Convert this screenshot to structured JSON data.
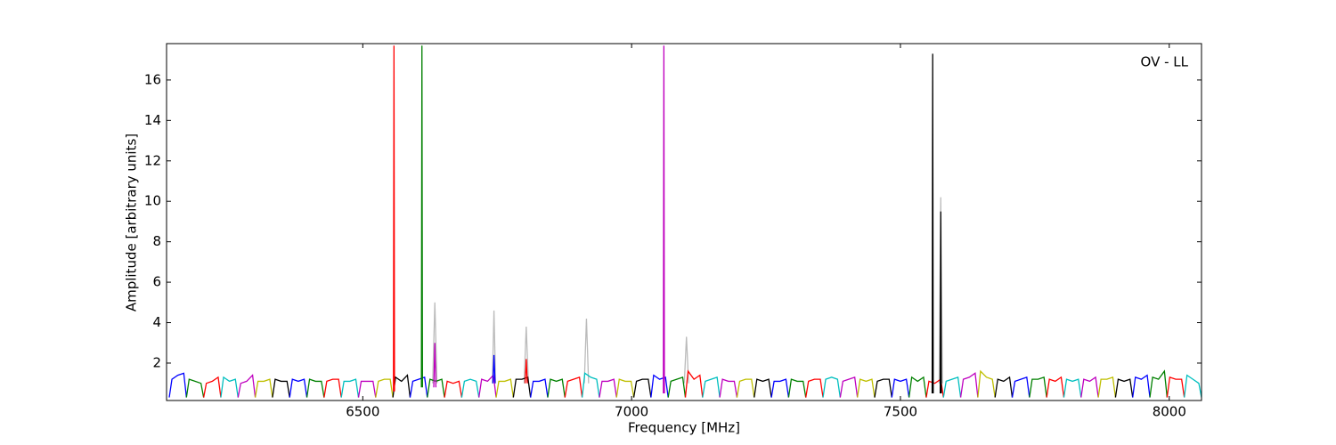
{
  "chart_data": {
    "type": "line",
    "xlabel": "Frequency [MHz]",
    "ylabel": "Amplitude [arbitrary units]",
    "annotation": "OV - LL",
    "xlim": [
      6135,
      8060
    ],
    "ylim": [
      0.15,
      17.8
    ],
    "xticks": [
      6500,
      7000,
      7500,
      8000
    ],
    "yticks": [
      2,
      4,
      6,
      8,
      10,
      12,
      14,
      16
    ],
    "series": [
      {
        "color": "#bbbbbb",
        "x": [
          6630,
          6634,
          6638
        ],
        "values": [
          1.0,
          5.0,
          1.0
        ]
      },
      {
        "color": "#bbbbbb",
        "x": [
          6741,
          6744,
          6747
        ],
        "values": [
          1.0,
          4.6,
          1.0
        ]
      },
      {
        "color": "#bbbbbb",
        "x": [
          6800,
          6804,
          6808
        ],
        "values": [
          1.0,
          3.8,
          1.0
        ]
      },
      {
        "color": "#bbbbbb",
        "x": [
          6912,
          6916,
          6920
        ],
        "values": [
          1.0,
          4.2,
          1.0
        ]
      },
      {
        "color": "#bbbbbb",
        "x": [
          7098,
          7102,
          7106
        ],
        "values": [
          1.0,
          3.3,
          1.0
        ]
      },
      {
        "color": "#bbbbbb",
        "x": [
          7572,
          7575,
          7578
        ],
        "values": [
          1.0,
          10.2,
          1.0
        ]
      },
      {
        "color": "#0000ff",
        "x": [
          6140,
          6145,
          6156,
          6167,
          6172
        ],
        "values": [
          0.3,
          1.2,
          1.4,
          1.5,
          0.3
        ]
      },
      {
        "color": "#008000",
        "x": [
          6172,
          6177,
          6188,
          6199,
          6204
        ],
        "values": [
          0.3,
          1.2,
          1.1,
          1.0,
          0.3
        ]
      },
      {
        "color": "#ff0000",
        "x": [
          6204,
          6209,
          6220,
          6231,
          6236
        ],
        "values": [
          0.3,
          1.0,
          1.1,
          1.3,
          0.3
        ]
      },
      {
        "color": "#00bfbf",
        "x": [
          6236,
          6241,
          6252,
          6263,
          6268
        ],
        "values": [
          0.3,
          1.3,
          1.1,
          1.2,
          0.3
        ]
      },
      {
        "color": "#bf00bf",
        "x": [
          6268,
          6273,
          6284,
          6295,
          6300
        ],
        "values": [
          0.3,
          1.0,
          1.1,
          1.4,
          0.3
        ]
      },
      {
        "color": "#bfbf00",
        "x": [
          6300,
          6305,
          6316,
          6327,
          6332
        ],
        "values": [
          0.3,
          1.1,
          1.1,
          1.2,
          0.3
        ]
      },
      {
        "color": "#000000",
        "x": [
          6332,
          6337,
          6348,
          6359,
          6364
        ],
        "values": [
          0.3,
          1.2,
          1.1,
          1.1,
          0.3
        ]
      },
      {
        "color": "#0000ff",
        "x": [
          6364,
          6369,
          6380,
          6391,
          6396
        ],
        "values": [
          0.3,
          1.2,
          1.1,
          1.2,
          0.3
        ]
      },
      {
        "color": "#008000",
        "x": [
          6396,
          6401,
          6412,
          6423,
          6428
        ],
        "values": [
          0.3,
          1.2,
          1.1,
          1.1,
          0.3
        ]
      },
      {
        "color": "#ff0000",
        "x": [
          6428,
          6433,
          6444,
          6455,
          6460
        ],
        "values": [
          0.3,
          1.1,
          1.2,
          1.2,
          0.3
        ]
      },
      {
        "color": "#00bfbf",
        "x": [
          6460,
          6465,
          6476,
          6487,
          6492
        ],
        "values": [
          0.3,
          1.1,
          1.1,
          1.2,
          0.3
        ]
      },
      {
        "color": "#bf00bf",
        "x": [
          6492,
          6497,
          6508,
          6519,
          6524
        ],
        "values": [
          0.3,
          1.1,
          1.1,
          1.1,
          0.3
        ]
      },
      {
        "color": "#bfbf00",
        "x": [
          6524,
          6529,
          6540,
          6551,
          6556
        ],
        "values": [
          0.3,
          1.1,
          1.2,
          1.2,
          0.3
        ]
      },
      {
        "color": "#000000",
        "x": [
          6556,
          6561,
          6572,
          6583,
          6588
        ],
        "values": [
          0.3,
          1.3,
          1.1,
          1.4,
          0.3
        ]
      },
      {
        "color": "#0000ff",
        "x": [
          6588,
          6593,
          6604,
          6615,
          6620
        ],
        "values": [
          0.3,
          1.1,
          1.2,
          1.3,
          0.3
        ]
      },
      {
        "color": "#008000",
        "x": [
          6620,
          6625,
          6636,
          6647,
          6652
        ],
        "values": [
          0.3,
          1.2,
          1.1,
          1.2,
          0.3
        ]
      },
      {
        "color": "#ff0000",
        "x": [
          6652,
          6657,
          6668,
          6679,
          6684
        ],
        "values": [
          0.3,
          1.1,
          1.0,
          1.1,
          0.3
        ]
      },
      {
        "color": "#00bfbf",
        "x": [
          6684,
          6689,
          6700,
          6711,
          6716
        ],
        "values": [
          0.3,
          1.1,
          1.2,
          1.1,
          0.3
        ]
      },
      {
        "color": "#bf00bf",
        "x": [
          6716,
          6721,
          6732,
          6743,
          6748
        ],
        "values": [
          0.3,
          1.2,
          1.1,
          1.4,
          0.3
        ]
      },
      {
        "color": "#bfbf00",
        "x": [
          6748,
          6753,
          6764,
          6775,
          6780
        ],
        "values": [
          0.3,
          1.1,
          1.1,
          1.2,
          0.3
        ]
      },
      {
        "color": "#000000",
        "x": [
          6780,
          6785,
          6796,
          6807,
          6812
        ],
        "values": [
          0.3,
          1.2,
          1.2,
          1.3,
          0.3
        ]
      },
      {
        "color": "#0000ff",
        "x": [
          6812,
          6817,
          6828,
          6839,
          6844
        ],
        "values": [
          0.3,
          1.1,
          1.1,
          1.2,
          0.3
        ]
      },
      {
        "color": "#008000",
        "x": [
          6844,
          6849,
          6860,
          6871,
          6876
        ],
        "values": [
          0.3,
          1.2,
          1.1,
          1.2,
          0.3
        ]
      },
      {
        "color": "#ff0000",
        "x": [
          6876,
          6881,
          6892,
          6903,
          6908
        ],
        "values": [
          0.3,
          1.1,
          1.2,
          1.3,
          0.3
        ]
      },
      {
        "color": "#00bfbf",
        "x": [
          6908,
          6913,
          6924,
          6935,
          6940
        ],
        "values": [
          0.3,
          1.5,
          1.3,
          1.2,
          0.3
        ]
      },
      {
        "color": "#bf00bf",
        "x": [
          6940,
          6945,
          6956,
          6967,
          6972
        ],
        "values": [
          0.3,
          1.1,
          1.1,
          1.2,
          0.3
        ]
      },
      {
        "color": "#bfbf00",
        "x": [
          6972,
          6977,
          6988,
          6999,
          7004
        ],
        "values": [
          0.3,
          1.2,
          1.1,
          1.1,
          0.3
        ]
      },
      {
        "color": "#000000",
        "x": [
          7004,
          7009,
          7020,
          7031,
          7036
        ],
        "values": [
          0.3,
          1.1,
          1.2,
          1.2,
          0.3
        ]
      },
      {
        "color": "#0000ff",
        "x": [
          7036,
          7041,
          7052,
          7063,
          7068
        ],
        "values": [
          0.3,
          1.4,
          1.2,
          1.3,
          0.3
        ]
      },
      {
        "color": "#008000",
        "x": [
          7068,
          7073,
          7084,
          7095,
          7100
        ],
        "values": [
          0.3,
          1.1,
          1.2,
          1.3,
          0.3
        ]
      },
      {
        "color": "#ff0000",
        "x": [
          7100,
          7105,
          7116,
          7127,
          7132
        ],
        "values": [
          0.3,
          1.6,
          1.2,
          1.4,
          0.3
        ]
      },
      {
        "color": "#00bfbf",
        "x": [
          7132,
          7137,
          7148,
          7159,
          7164
        ],
        "values": [
          0.3,
          1.1,
          1.2,
          1.3,
          0.3
        ]
      },
      {
        "color": "#bf00bf",
        "x": [
          7164,
          7169,
          7180,
          7191,
          7196
        ],
        "values": [
          0.3,
          1.2,
          1.1,
          1.1,
          0.3
        ]
      },
      {
        "color": "#bfbf00",
        "x": [
          7196,
          7201,
          7212,
          7223,
          7228
        ],
        "values": [
          0.3,
          1.1,
          1.2,
          1.2,
          0.3
        ]
      },
      {
        "color": "#000000",
        "x": [
          7228,
          7233,
          7244,
          7255,
          7260
        ],
        "values": [
          0.3,
          1.2,
          1.1,
          1.2,
          0.3
        ]
      },
      {
        "color": "#0000ff",
        "x": [
          7260,
          7265,
          7276,
          7287,
          7292
        ],
        "values": [
          0.3,
          1.1,
          1.1,
          1.2,
          0.3
        ]
      },
      {
        "color": "#008000",
        "x": [
          7292,
          7297,
          7308,
          7319,
          7324
        ],
        "values": [
          0.3,
          1.2,
          1.1,
          1.1,
          0.3
        ]
      },
      {
        "color": "#ff0000",
        "x": [
          7324,
          7329,
          7340,
          7351,
          7356
        ],
        "values": [
          0.3,
          1.1,
          1.2,
          1.2,
          0.3
        ]
      },
      {
        "color": "#00bfbf",
        "x": [
          7356,
          7361,
          7372,
          7383,
          7388
        ],
        "values": [
          0.3,
          1.2,
          1.3,
          1.2,
          0.3
        ]
      },
      {
        "color": "#bf00bf",
        "x": [
          7388,
          7393,
          7404,
          7415,
          7420
        ],
        "values": [
          0.3,
          1.1,
          1.2,
          1.3,
          0.3
        ]
      },
      {
        "color": "#bfbf00",
        "x": [
          7420,
          7425,
          7436,
          7447,
          7452
        ],
        "values": [
          0.3,
          1.2,
          1.1,
          1.2,
          0.3
        ]
      },
      {
        "color": "#000000",
        "x": [
          7452,
          7457,
          7468,
          7479,
          7484
        ],
        "values": [
          0.3,
          1.1,
          1.2,
          1.2,
          0.3
        ]
      },
      {
        "color": "#0000ff",
        "x": [
          7484,
          7489,
          7500,
          7511,
          7516
        ],
        "values": [
          0.3,
          1.2,
          1.1,
          1.2,
          0.3
        ]
      },
      {
        "color": "#008000",
        "x": [
          7516,
          7521,
          7532,
          7543,
          7548
        ],
        "values": [
          0.3,
          1.3,
          1.1,
          1.3,
          0.3
        ]
      },
      {
        "color": "#ff0000",
        "x": [
          7548,
          7553,
          7564,
          7575,
          7580
        ],
        "values": [
          0.3,
          1.1,
          1.0,
          1.2,
          0.3
        ]
      },
      {
        "color": "#00bfbf",
        "x": [
          7580,
          7585,
          7596,
          7607,
          7612
        ],
        "values": [
          0.3,
          1.1,
          1.2,
          1.3,
          0.3
        ]
      },
      {
        "color": "#bf00bf",
        "x": [
          7612,
          7617,
          7628,
          7639,
          7644
        ],
        "values": [
          0.3,
          1.2,
          1.3,
          1.5,
          0.3
        ]
      },
      {
        "color": "#bfbf00",
        "x": [
          7644,
          7649,
          7660,
          7671,
          7676
        ],
        "values": [
          0.3,
          1.6,
          1.3,
          1.2,
          0.3
        ]
      },
      {
        "color": "#000000",
        "x": [
          7676,
          7681,
          7692,
          7703,
          7708
        ],
        "values": [
          0.3,
          1.2,
          1.1,
          1.3,
          0.3
        ]
      },
      {
        "color": "#0000ff",
        "x": [
          7708,
          7713,
          7724,
          7735,
          7740
        ],
        "values": [
          0.3,
          1.1,
          1.2,
          1.3,
          0.3
        ]
      },
      {
        "color": "#008000",
        "x": [
          7740,
          7745,
          7756,
          7767,
          7772
        ],
        "values": [
          0.3,
          1.2,
          1.2,
          1.3,
          0.3
        ]
      },
      {
        "color": "#ff0000",
        "x": [
          7772,
          7777,
          7788,
          7799,
          7804
        ],
        "values": [
          0.3,
          1.2,
          1.1,
          1.3,
          0.3
        ]
      },
      {
        "color": "#00bfbf",
        "x": [
          7804,
          7809,
          7820,
          7831,
          7836
        ],
        "values": [
          0.3,
          1.2,
          1.1,
          1.2,
          0.3
        ]
      },
      {
        "color": "#bf00bf",
        "x": [
          7836,
          7841,
          7852,
          7863,
          7868
        ],
        "values": [
          0.3,
          1.2,
          1.1,
          1.3,
          0.3
        ]
      },
      {
        "color": "#bfbf00",
        "x": [
          7868,
          7873,
          7884,
          7895,
          7900
        ],
        "values": [
          0.3,
          1.2,
          1.2,
          1.3,
          0.3
        ]
      },
      {
        "color": "#000000",
        "x": [
          7900,
          7905,
          7916,
          7927,
          7932
        ],
        "values": [
          0.3,
          1.2,
          1.1,
          1.2,
          0.3
        ]
      },
      {
        "color": "#0000ff",
        "x": [
          7932,
          7937,
          7948,
          7959,
          7964
        ],
        "values": [
          0.3,
          1.3,
          1.2,
          1.4,
          0.3
        ]
      },
      {
        "color": "#008000",
        "x": [
          7964,
          7969,
          7980,
          7991,
          7996
        ],
        "values": [
          0.3,
          1.3,
          1.2,
          1.6,
          0.3
        ]
      },
      {
        "color": "#ff0000",
        "x": [
          7996,
          8001,
          8012,
          8023,
          8028
        ],
        "values": [
          0.3,
          1.3,
          1.2,
          1.2,
          0.3
        ]
      },
      {
        "color": "#00bfbf",
        "x": [
          8028,
          8033,
          8044,
          8055,
          8060
        ],
        "values": [
          0.3,
          1.4,
          1.2,
          1.0,
          0.3
        ]
      },
      {
        "color": "#ff0000",
        "x": [
          6557,
          6558,
          6559
        ],
        "values": [
          0.6,
          17.7,
          0.6
        ]
      },
      {
        "color": "#008000",
        "x": [
          6609,
          6610,
          6611
        ],
        "values": [
          0.8,
          17.7,
          0.8
        ]
      },
      {
        "color": "#bf00bf",
        "x": [
          6632,
          6634,
          6636
        ],
        "values": [
          0.8,
          3.0,
          0.8
        ]
      },
      {
        "color": "#0000ff",
        "x": [
          6742,
          6744,
          6746
        ],
        "values": [
          1.0,
          2.4,
          1.0
        ]
      },
      {
        "color": "#ff0000",
        "x": [
          6802,
          6804,
          6806
        ],
        "values": [
          1.0,
          2.2,
          1.0
        ]
      },
      {
        "color": "#bf00bf",
        "x": [
          7059,
          7060,
          7061
        ],
        "values": [
          0.5,
          17.7,
          0.5
        ]
      },
      {
        "color": "#000000",
        "x": [
          7559,
          7560,
          7561
        ],
        "values": [
          0.5,
          17.3,
          0.5
        ]
      },
      {
        "color": "#000000",
        "x": [
          7574,
          7575,
          7576
        ],
        "values": [
          0.5,
          9.5,
          0.5
        ]
      }
    ]
  }
}
